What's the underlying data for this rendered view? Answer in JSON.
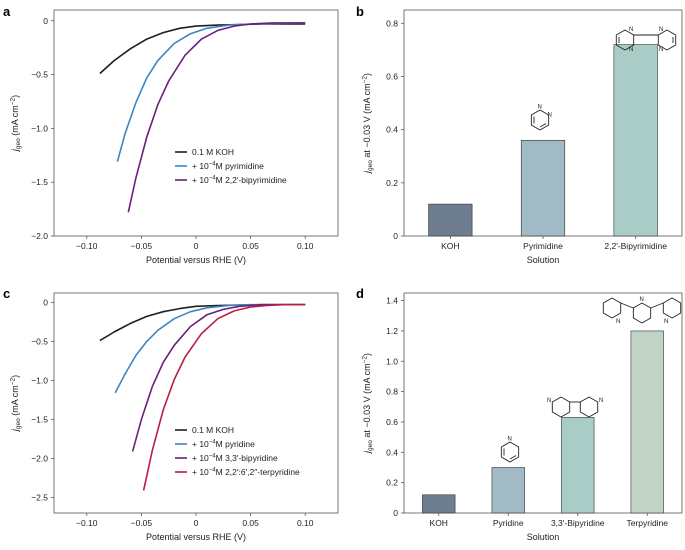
{
  "chart_data": [
    {
      "panel": "a",
      "type": "line",
      "xlabel": "Potential versus RHE (V)",
      "ylabel": "j_geo (mA cm^-2)",
      "xlim": [
        -0.13,
        0.13
      ],
      "ylim": [
        -2.0,
        0.1
      ],
      "xticks": [
        -0.1,
        -0.05,
        0,
        0.05,
        0.1
      ],
      "xtick_labels": [
        "−0.10",
        "−0.05",
        "0",
        "0.05",
        "0.10"
      ],
      "yticks": [
        0,
        -0.5,
        -1.0,
        -1.5,
        -2.0
      ],
      "ytick_labels": [
        "0",
        "−0.5",
        "−1.0",
        "−1.5",
        "−2.0"
      ],
      "legend_position": "center-right",
      "series": [
        {
          "name": "0.1 M KOH",
          "color": "#1f1f1f",
          "x": [
            -0.088,
            -0.075,
            -0.06,
            -0.045,
            -0.03,
            -0.015,
            0,
            0.02,
            0.04,
            0.06,
            0.08,
            0.1
          ],
          "y": [
            -0.49,
            -0.37,
            -0.26,
            -0.17,
            -0.11,
            -0.07,
            -0.05,
            -0.04,
            -0.035,
            -0.03,
            -0.03,
            -0.03
          ]
        },
        {
          "name": "+ 10⁻⁴ M pyrimidine",
          "color": "#3a86c6",
          "x": [
            -0.072,
            -0.065,
            -0.055,
            -0.045,
            -0.035,
            -0.02,
            -0.005,
            0.01,
            0.03,
            0.05,
            0.07,
            0.1
          ],
          "y": [
            -1.31,
            -1.05,
            -0.76,
            -0.53,
            -0.37,
            -0.21,
            -0.12,
            -0.07,
            -0.04,
            -0.03,
            -0.025,
            -0.02
          ]
        },
        {
          "name": "+ 10⁻⁴ M 2,2′-bipyrimidine",
          "color": "#6b1f7a",
          "x": [
            -0.062,
            -0.055,
            -0.045,
            -0.035,
            -0.025,
            -0.01,
            0.005,
            0.02,
            0.035,
            0.05,
            0.07,
            0.1
          ],
          "y": [
            -1.78,
            -1.46,
            -1.08,
            -0.78,
            -0.56,
            -0.32,
            -0.17,
            -0.09,
            -0.05,
            -0.03,
            -0.02,
            -0.02
          ]
        }
      ]
    },
    {
      "panel": "b",
      "type": "bar",
      "xlabel": "Solution",
      "ylabel": "j_geo at −0.03 V (mA cm^-2)",
      "ylim": [
        0,
        0.85
      ],
      "yticks": [
        0,
        0.2,
        0.4,
        0.6,
        0.8
      ],
      "ytick_labels": [
        "0",
        "0.2",
        "0.4",
        "0.6",
        "0.8"
      ],
      "categories": [
        "KOH",
        "Pyrimidine",
        "2,2′-Bipyrimidine"
      ],
      "values": [
        0.12,
        0.36,
        0.72
      ],
      "colors": [
        "#6f7d90",
        "#a2b9c6",
        "#a9ccc7"
      ]
    },
    {
      "panel": "c",
      "type": "line",
      "xlabel": "Potential versus RHE (V)",
      "ylabel": "j_geo (mA cm^-2)",
      "xlim": [
        -0.13,
        0.13
      ],
      "ylim": [
        -2.7,
        0.12
      ],
      "xticks": [
        -0.1,
        -0.05,
        0,
        0.05,
        0.1
      ],
      "xtick_labels": [
        "−0.10",
        "−0.05",
        "0",
        "0.05",
        "0.10"
      ],
      "yticks": [
        0,
        -0.5,
        -1.0,
        -1.5,
        -2.0,
        -2.5
      ],
      "ytick_labels": [
        "0",
        "−0.5",
        "−1.0",
        "−1.5",
        "−2.0",
        "−2.5"
      ],
      "legend_position": "center-right",
      "series": [
        {
          "name": "0.1 M KOH",
          "color": "#1f1f1f",
          "x": [
            -0.088,
            -0.075,
            -0.06,
            -0.045,
            -0.03,
            -0.015,
            0,
            0.02,
            0.04,
            0.06,
            0.08,
            0.1
          ],
          "y": [
            -0.49,
            -0.38,
            -0.27,
            -0.18,
            -0.12,
            -0.08,
            -0.05,
            -0.04,
            -0.035,
            -0.03,
            -0.03,
            -0.03
          ]
        },
        {
          "name": "+ 10⁻⁴ M pyridine",
          "color": "#3a86c6",
          "x": [
            -0.074,
            -0.065,
            -0.055,
            -0.045,
            -0.035,
            -0.02,
            -0.005,
            0.01,
            0.03,
            0.05,
            0.07,
            0.1
          ],
          "y": [
            -1.16,
            -0.92,
            -0.68,
            -0.5,
            -0.36,
            -0.21,
            -0.12,
            -0.07,
            -0.04,
            -0.03,
            -0.03,
            -0.03
          ]
        },
        {
          "name": "+ 10⁻⁴ M 3,3′-bipyridine",
          "color": "#6b1f7a",
          "x": [
            -0.058,
            -0.05,
            -0.04,
            -0.03,
            -0.02,
            -0.005,
            0.01,
            0.025,
            0.04,
            0.06,
            0.08,
            0.1
          ],
          "y": [
            -1.91,
            -1.5,
            -1.08,
            -0.77,
            -0.55,
            -0.31,
            -0.16,
            -0.09,
            -0.05,
            -0.03,
            -0.03,
            -0.03
          ]
        },
        {
          "name": "+ 10⁻⁴ M 2,2′:6′,2″-terpyridine",
          "color": "#b81f40",
          "x": [
            -0.048,
            -0.04,
            -0.03,
            -0.02,
            -0.01,
            0.005,
            0.02,
            0.035,
            0.05,
            0.065,
            0.08,
            0.1
          ],
          "y": [
            -2.41,
            -1.9,
            -1.38,
            -0.99,
            -0.7,
            -0.4,
            -0.21,
            -0.11,
            -0.06,
            -0.04,
            -0.03,
            -0.03
          ]
        }
      ]
    },
    {
      "panel": "d",
      "type": "bar",
      "xlabel": "Solution",
      "ylabel": "j_geo at −0.03 V (mA cm^-2)",
      "ylim": [
        0,
        1.45
      ],
      "yticks": [
        0,
        0.2,
        0.4,
        0.6,
        0.8,
        1.0,
        1.2,
        1.4
      ],
      "ytick_labels": [
        "0",
        "0.2",
        "0.4",
        "0.6",
        "0.8",
        "1.0",
        "1.2",
        "1.4"
      ],
      "categories": [
        "KOH",
        "Pyridine",
        "3,3′-Bipyridine",
        "Terpyridine"
      ],
      "values": [
        0.12,
        0.3,
        0.63,
        1.2
      ],
      "colors": [
        "#6f7d90",
        "#a2b9c6",
        "#a9ccc7",
        "#c0d3c6"
      ]
    }
  ]
}
